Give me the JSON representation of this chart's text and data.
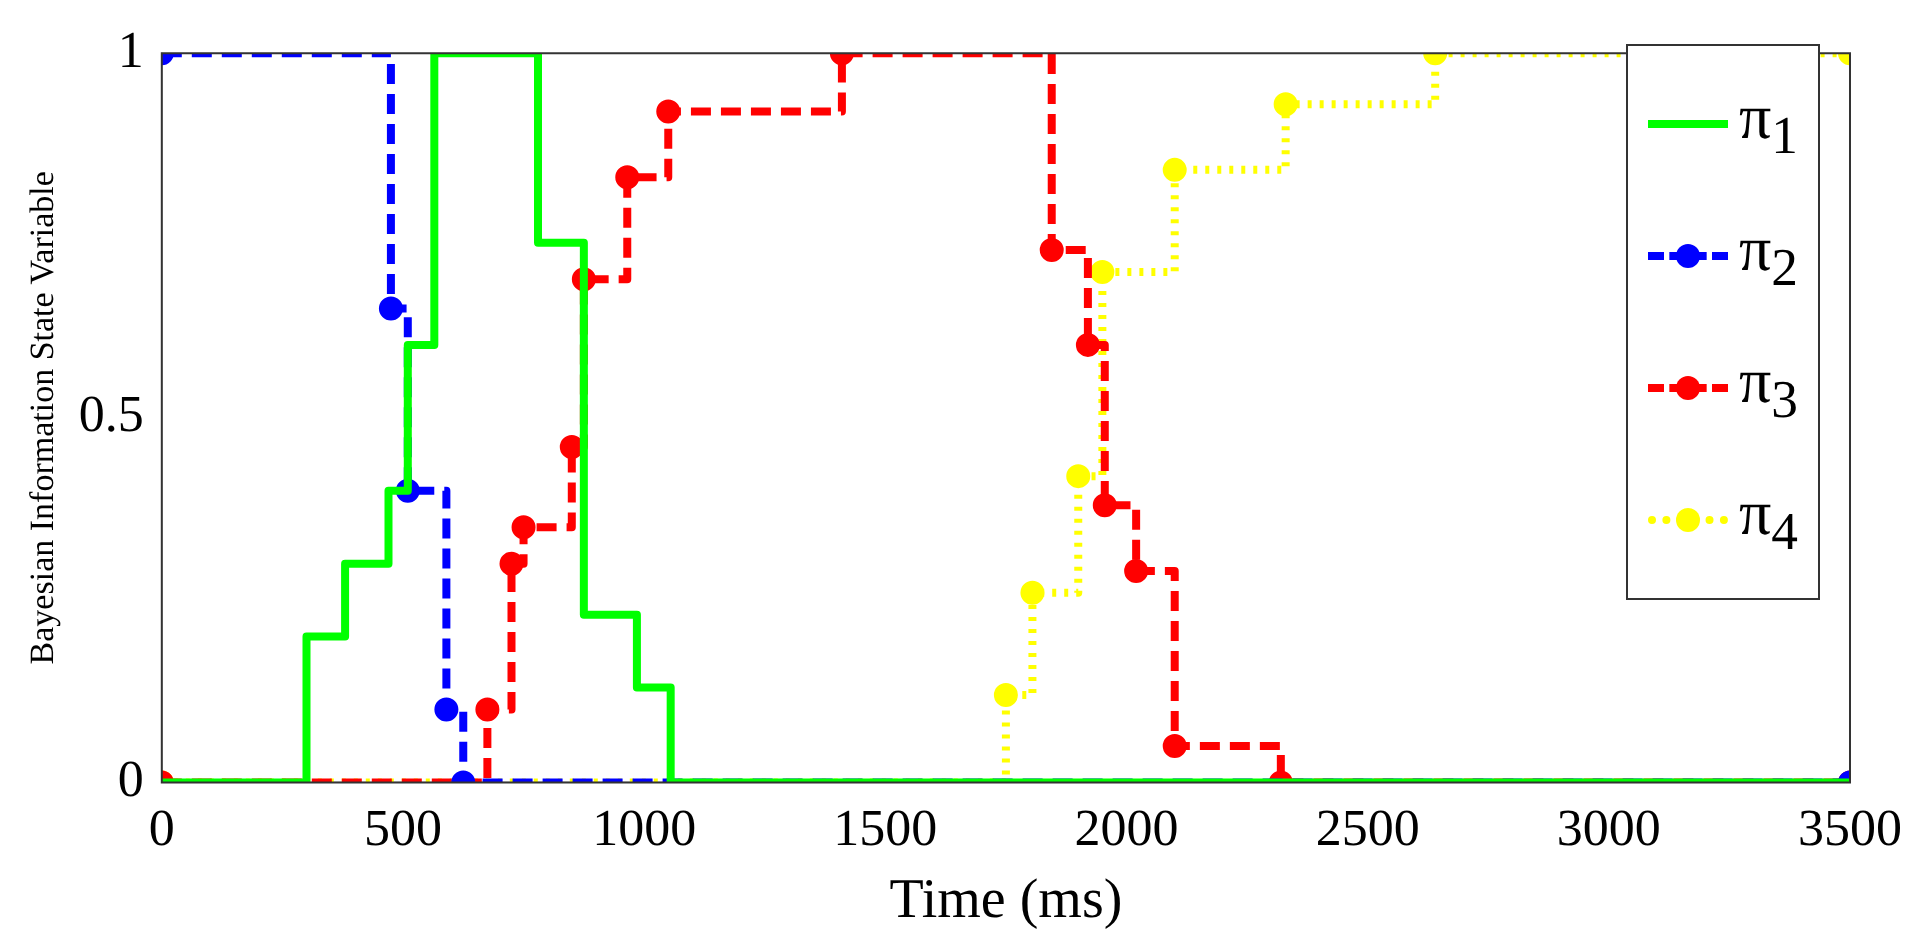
{
  "chart_data": {
    "type": "step",
    "xlabel": "Time (ms)",
    "ylabel": "Bayesian Information State Variable",
    "xlim": [
      0,
      3500
    ],
    "xticks": [
      0,
      500,
      1000,
      1500,
      2000,
      2500,
      3000,
      3500
    ],
    "ylim": [
      0,
      1
    ],
    "yticks": [
      0,
      0.5,
      1
    ],
    "grid": false,
    "legend": "top right",
    "series": [
      {
        "name": "π$_{1}$",
        "color": "#00ff00",
        "line_style": "solid",
        "marker": "none",
        "x": [
          0,
          300,
          380,
          470,
          510,
          565,
          780,
          875,
          985,
          1055,
          3500
        ],
        "values": [
          0,
          0.2,
          0.3,
          0.4,
          0.6,
          1,
          0.74,
          0.23,
          0.13,
          0,
          0
        ]
      },
      {
        "name": "π$_{2}$",
        "color": "#0000ff",
        "line_style": "dashed",
        "marker": "circle",
        "x": [
          0,
          475,
          510,
          590,
          625,
          3500
        ],
        "values": [
          1,
          0.65,
          0.4,
          0.1,
          0,
          0
        ]
      },
      {
        "name": "π$_{3}$",
        "color": "#ff0000",
        "line_style": "dashed",
        "marker": "circle",
        "x": [
          0,
          675,
          725,
          750,
          850,
          875,
          965,
          1050,
          1410,
          1845,
          1920,
          1955,
          2020,
          2100,
          2320,
          3500
        ],
        "values": [
          0,
          0.1,
          0.3,
          0.35,
          0.46,
          0.69,
          0.83,
          0.92,
          1,
          0.73,
          0.6,
          0.38,
          0.29,
          0.05,
          0,
          0
        ]
      },
      {
        "name": "π$_{4}$",
        "color": "#ffff00",
        "line_style": "dotted",
        "marker": "circle",
        "x": [
          0,
          1750,
          1805,
          1900,
          1950,
          2100,
          2330,
          2640,
          3500
        ],
        "values": [
          0,
          0.12,
          0.26,
          0.42,
          0.7,
          0.84,
          0.93,
          1,
          1
        ]
      }
    ]
  }
}
